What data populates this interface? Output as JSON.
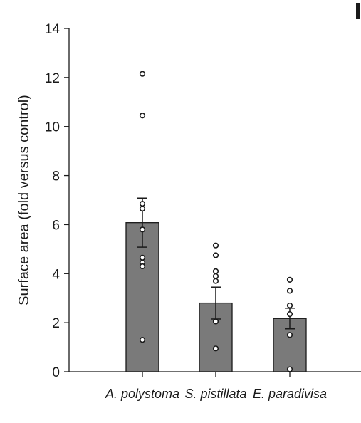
{
  "chart_data": {
    "type": "bar",
    "title": "",
    "xlabel": "",
    "ylabel": "Surface area (fold versus control)",
    "ylim": [
      0,
      14
    ],
    "yticks": [
      0,
      2,
      4,
      6,
      8,
      10,
      12,
      14
    ],
    "categories": [
      "A. polystoma",
      "S. pistillata",
      "E. paradivisa"
    ],
    "values": [
      6.08,
      2.8,
      2.17
    ],
    "error": [
      1.0,
      0.65,
      0.42
    ],
    "points": [
      [
        12.15,
        10.45,
        6.85,
        6.65,
        5.8,
        4.65,
        4.45,
        4.3,
        1.3
      ],
      [
        5.15,
        4.75,
        4.1,
        3.9,
        3.7,
        2.05,
        0.95
      ],
      [
        3.75,
        3.3,
        2.7,
        2.35,
        1.5,
        0.1
      ]
    ],
    "grid": false,
    "legend": "none",
    "bar_color": "#7a7a7a",
    "point_fill": "#ffffff",
    "stroke_color": "#1a1a1a"
  }
}
